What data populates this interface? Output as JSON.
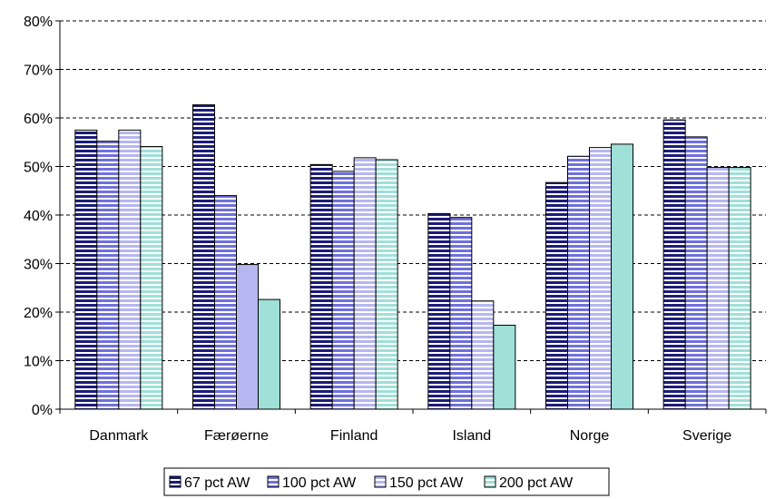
{
  "chart_data": {
    "type": "bar",
    "title": "",
    "xlabel": "",
    "ylabel": "",
    "ylim": [
      0,
      80
    ],
    "yticks": [
      0,
      10,
      20,
      30,
      40,
      50,
      60,
      70,
      80
    ],
    "ytick_labels": [
      "0%",
      "10%",
      "20%",
      "30%",
      "40%",
      "50%",
      "60%",
      "70%",
      "80%"
    ],
    "grid": "horizontal dashed",
    "legend_position": "bottom",
    "categories": [
      "Danmark",
      "Færøerne",
      "Finland",
      "Island",
      "Norge",
      "Sverige"
    ],
    "series": [
      {
        "name": "67 pct AW",
        "values": [
          57.5,
          62.7,
          50.4,
          40.3,
          46.7,
          59.6
        ],
        "fill": "#1c1c78",
        "stripe": "#ffffff",
        "pattern": "h-stripes"
      },
      {
        "name": "100 pct AW",
        "values": [
          55.2,
          44.0,
          49.0,
          39.5,
          52.1,
          56.1
        ],
        "fill": "#6f70dc",
        "stripe": "#ffffff",
        "pattern": "h-stripes"
      },
      {
        "name": "150 pct AW",
        "values": [
          57.5,
          29.8,
          51.8,
          22.3,
          53.9,
          49.8
        ],
        "fill": "#b6b6f0",
        "stripe": "#ffffff",
        "pattern": "h-stripes-partial",
        "solid_categories": [
          "Færøerne"
        ]
      },
      {
        "name": "200 pct AW",
        "values": [
          54.1,
          22.6,
          51.4,
          17.3,
          54.6,
          49.8
        ],
        "fill": "#9fe0d8",
        "stripe": "#ffffff",
        "pattern": "h-stripes-partial",
        "solid_categories": [
          "Færøerne",
          "Island",
          "Norge"
        ]
      }
    ]
  }
}
